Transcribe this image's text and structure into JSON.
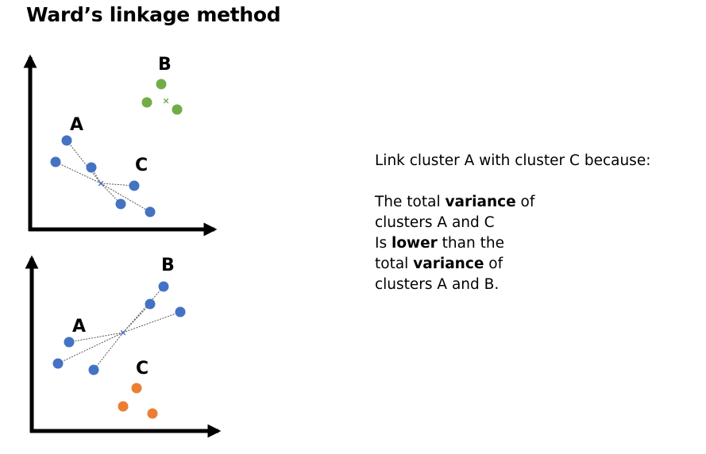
{
  "title": "Ward’s linkage method",
  "colors": {
    "blue": "#4472c4",
    "green": "#70ad47",
    "orange": "#ed7d31",
    "axis": "#000000",
    "link": "#555555"
  },
  "top_panel": {
    "labels": {
      "a": "A",
      "b": "B",
      "c": "C"
    }
  },
  "bottom_panel": {
    "labels": {
      "a": "A",
      "b": "B",
      "c": "C"
    }
  },
  "explanation": {
    "intro": "Link cluster A with cluster C because:",
    "l1_pre": "The total ",
    "l1_bold": "variance",
    "l1_post": " of",
    "l2": "clusters A and C",
    "l3_pre": "Is ",
    "l3_bold": "lower",
    "l3_post": " than the",
    "l4_pre": "total ",
    "l4_bold": "variance",
    "l4_post": " of",
    "l5": "clusters A and B."
  }
}
